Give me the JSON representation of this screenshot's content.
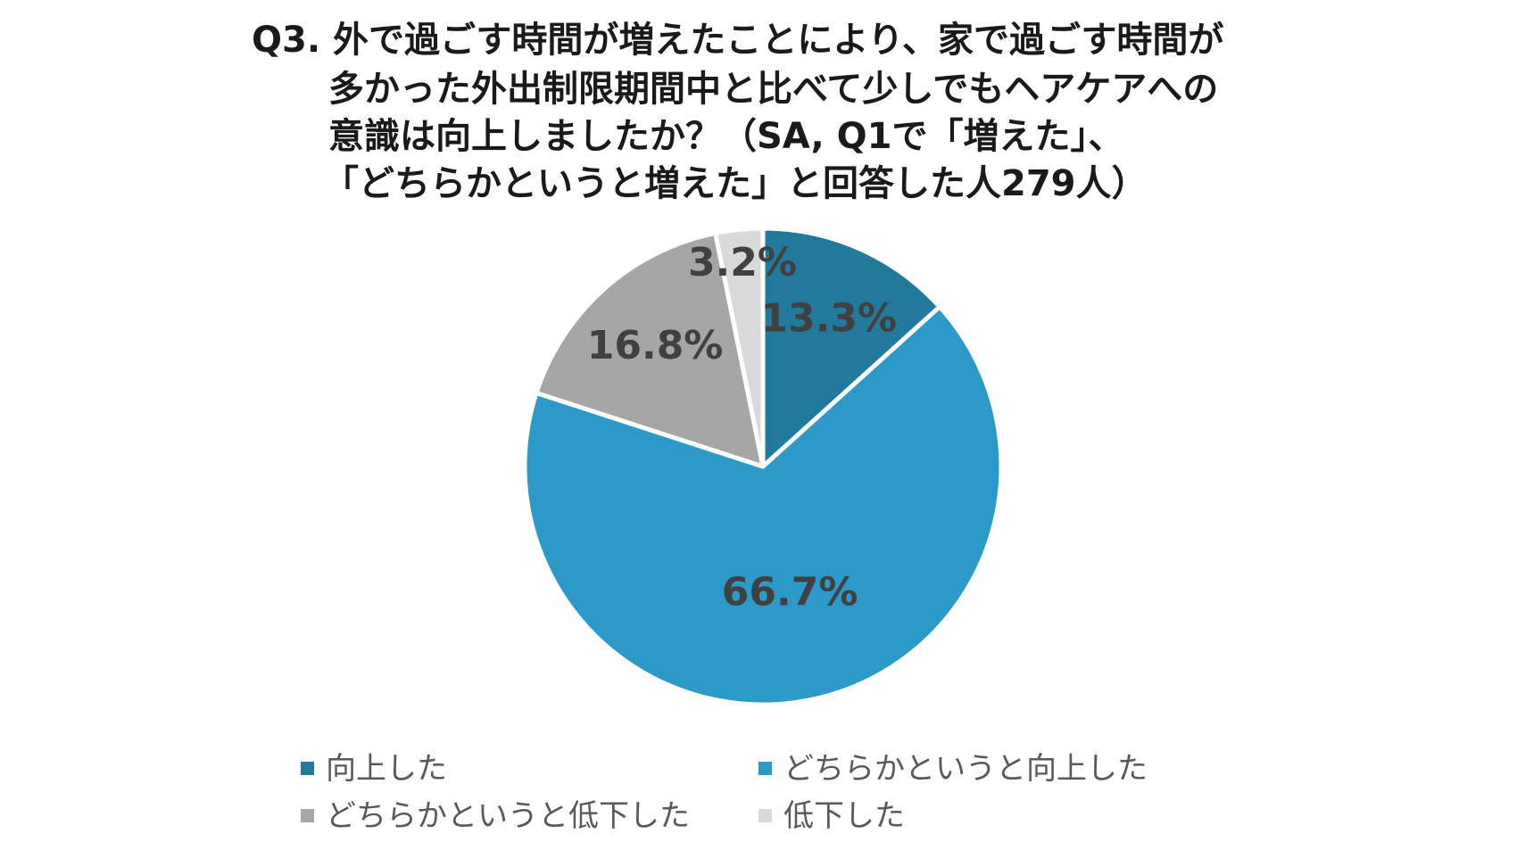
{
  "chart_data": {
    "type": "pie",
    "title_lines": [
      "Q3. 外で過ごす時間が増えたことにより、家で過ごす時間が",
      "多かった外出制限期間中と比べて少しでもヘアケアへの",
      "意識は向上しましたか？（SA, Q1で「増えた」、",
      "「どちらかというと増えた」と回答した人279人）"
    ],
    "categories": [
      "向上した",
      "どちらかというと向上した",
      "どちらかというと低下した",
      "低下した"
    ],
    "values": [
      13.3,
      66.7,
      16.8,
      3.2
    ],
    "data_labels": [
      "13.3%",
      "66.7%",
      "16.8%",
      "3.2%"
    ],
    "colors": [
      "#21799b",
      "#2b9ac8",
      "#a6a6a6",
      "#d9d9d9"
    ],
    "legend_position": "bottom",
    "start_angle": "12 o'clock, clockwise"
  }
}
